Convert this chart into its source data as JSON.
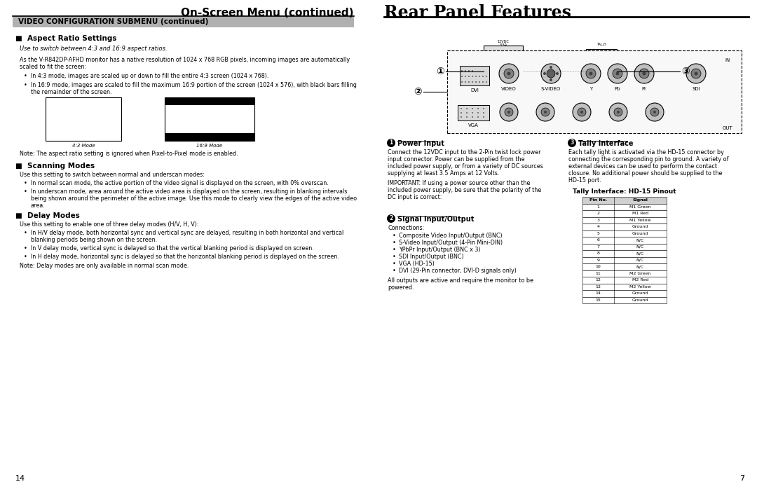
{
  "bg_color": "#ffffff",
  "left_page_num": "14",
  "right_page_num": "7",
  "left_header": "On-Screen Menu (continued)",
  "right_header": "Rear Panel Features",
  "section_bar_color": "#b0b0b0",
  "section_bar_text": "VIDEO CONFIGURATION SUBMENU (continued)",
  "aspect_ratio_title": "Aspect Ratio Settings",
  "aspect_ratio_intro": "Use to switch between 4:3 and 16:9 aspect ratios.",
  "aspect_ratio_body1": "As the V-R842DP-AFHD monitor has a native resolution of 1024 x 768 RGB pixels, incoming images are automatically",
  "aspect_ratio_body2": "scaled to fit the screen:",
  "aspect_bullet1": "In 4:3 mode, images are scaled up or down to fill the entire 4:3 screen (1024 x 768).",
  "aspect_bullet2a": "In 16:9 mode, images are scaled to fill the maximum 16:9 portion of the screen (1024 x 576), with black bars filling",
  "aspect_bullet2b": "the remainder of the screen.",
  "aspect_note": "Note: The aspect ratio setting is ignored when Pixel-to-Pixel mode is enabled.",
  "mode43_label": "4:3 Mode",
  "mode169_label": "16:9 Mode",
  "scanning_title": "Scanning Modes",
  "scanning_intro": "Use this setting to switch between normal and underscan modes:",
  "scanning_bullet1": "In normal scan mode, the active portion of the video signal is displayed on the screen, with 0% overscan.",
  "scanning_bullet2a": "In underscan mode, area around the active video area is displayed on the screen, resulting in blanking intervals",
  "scanning_bullet2b": "being shown around the perimeter of the active image. Use this mode to clearly view the edges of the active video",
  "scanning_bullet2c": "area.",
  "delay_title": "Delay Modes",
  "delay_intro": "Use this setting to enable one of three delay modes (H/V, H, V):",
  "delay_bullet1a": "In H/V delay mode, both horizontal sync and vertical sync are delayed, resulting in both horizontal and vertical",
  "delay_bullet1b": "blanking periods being shown on the screen.",
  "delay_bullet2": "In V delay mode, vertical sync is delayed so that the vertical blanking period is displayed on screen.",
  "delay_bullet3": "In H delay mode, horizontal sync is delayed so that the horizontal blanking period is displayed on the screen.",
  "delay_note": "Note: Delay modes are only available in normal scan mode.",
  "power_input_title": "Power Input",
  "power_input_body1a": "Connect the 12VDC input to the 2-Pin twist lock power",
  "power_input_body1b": "input connector. Power can be supplied from the",
  "power_input_body1c": "included power supply, or from a variety of DC sources",
  "power_input_body1d": "supplying at least 3.5 Amps at 12 Volts.",
  "power_input_body2a": "IMPORTANT: If using a power source other than the",
  "power_input_body2b": "included power supply, be sure that the polarity of the",
  "power_input_body2c": "DC input is correct:",
  "signal_io_title": "Signal Input/Output",
  "signal_io_intro": "Connections:",
  "signal_io_bullets": [
    "Composite Video Input/Output (BNC)",
    "S-Video Input/Output (4-Pin Mini-DIN)",
    "YPbPr Input/Output (BNC x 3)",
    "SDI Input/Output (BNC)",
    "VGA (HD-15)",
    "DVI (29-Pin connector, DVI-D signals only)"
  ],
  "signal_io_note1": "All outputs are active and require the monitor to be",
  "signal_io_note2": "powered.",
  "tally_title": "Tally Interface",
  "tally_body1": "Each tally light is activated via the HD-15 connector by",
  "tally_body2": "connecting the corresponding pin to ground. A variety of",
  "tally_body3": "external devices can be used to perform the contact",
  "tally_body4": "closure. No additional power should be supplied to the",
  "tally_body5": "HD-15 port.",
  "tally_pinout_title": "Tally Interface: HD-15 Pinout",
  "tally_table": [
    [
      "Pin No.",
      "Signal"
    ],
    [
      "1",
      "M1 Green"
    ],
    [
      "2",
      "M1 Red"
    ],
    [
      "3",
      "M1 Yellow"
    ],
    [
      "4",
      "Ground"
    ],
    [
      "5",
      "Ground"
    ],
    [
      "6",
      "N/C"
    ],
    [
      "7",
      "N/C"
    ],
    [
      "8",
      "N/C"
    ],
    [
      "9",
      "N/C"
    ],
    [
      "10",
      "N/C"
    ],
    [
      "11",
      "M2 Green"
    ],
    [
      "12",
      "M2 Red"
    ],
    [
      "13",
      "M2 Yellow"
    ],
    [
      "14",
      "Ground"
    ],
    [
      "15",
      "Ground"
    ]
  ]
}
